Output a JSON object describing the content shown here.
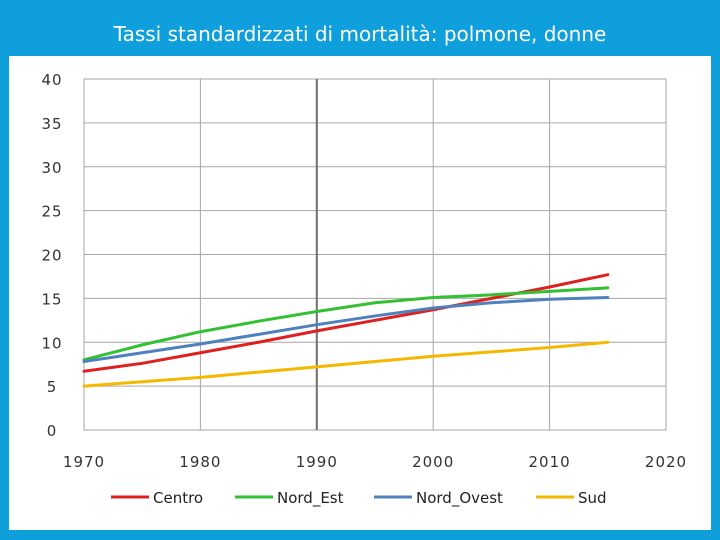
{
  "slide": {
    "title": "Tassi standardizzati di mortalità: polmone, donne",
    "background": "#0f9fdc"
  },
  "chart_data": {
    "type": "line",
    "title": "",
    "xlabel": "",
    "ylabel": "",
    "xlim": [
      1970,
      2020
    ],
    "ylim": [
      0,
      40
    ],
    "x_ticks": [
      1970,
      1980,
      1990,
      2000,
      2010,
      2020
    ],
    "y_ticks": [
      0,
      5,
      10,
      15,
      20,
      25,
      30,
      35,
      40
    ],
    "grid": true,
    "legend_position": "bottom",
    "x": [
      1970,
      1975,
      1980,
      1985,
      1990,
      1995,
      2000,
      2005,
      2010,
      2015
    ],
    "series": [
      {
        "name": "Centro",
        "color": "#e02020",
        "values": [
          6.7,
          7.6,
          8.8,
          10.0,
          11.3,
          12.5,
          13.7,
          15.0,
          16.3,
          17.7
        ]
      },
      {
        "name": "Nord_Est",
        "color": "#33c033",
        "values": [
          8.0,
          9.7,
          11.2,
          12.4,
          13.5,
          14.5,
          15.1,
          15.4,
          15.8,
          16.2
        ]
      },
      {
        "name": "Nord_Ovest",
        "color": "#4f81bd",
        "values": [
          7.8,
          8.8,
          9.8,
          10.9,
          12.0,
          13.0,
          13.9,
          14.5,
          14.9,
          15.1
        ]
      },
      {
        "name": "Sud",
        "color": "#f5b800",
        "values": [
          5.0,
          5.5,
          6.0,
          6.6,
          7.2,
          7.8,
          8.4,
          8.9,
          9.4,
          10.0
        ]
      }
    ]
  }
}
